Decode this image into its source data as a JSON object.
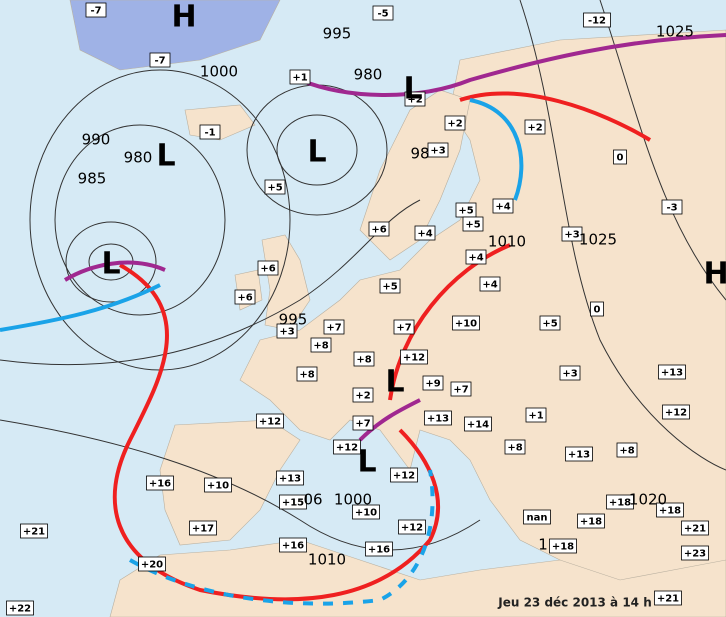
{
  "temperature_labels": [
    "-7",
    "-5",
    "-12",
    "-7",
    "+1",
    "+2",
    "-1",
    "+2",
    "+2",
    "+3",
    "0",
    "+5",
    "+5",
    "+4",
    "-3",
    "+6",
    "+4",
    "+5",
    "+3",
    "+6",
    "+5",
    "+4",
    "+4",
    "+6",
    "0",
    "+10",
    "+5",
    "+7",
    "+3",
    "+7",
    "+8",
    "+12",
    "+8",
    "+3",
    "+13",
    "+8",
    "+9",
    "+7",
    "+2",
    "+1",
    "+12",
    "+13",
    "+14",
    "+7",
    "+12",
    "+12",
    "+8",
    "+13",
    "+8",
    "+12",
    "+13",
    "+16",
    "+10",
    "+15",
    "+10",
    "+18",
    "+18",
    "+17",
    "+12",
    "nan",
    "+18",
    "+21",
    "+21",
    "+16",
    "+16",
    "+18",
    "+23",
    "+20",
    "+22",
    "+21"
  ],
  "isobar_labels": [
    "995",
    "1025",
    "980",
    "1000",
    "990",
    "980",
    "985",
    "98",
    "1010",
    "1025",
    "995",
    "1000",
    "06",
    "1010",
    "1020",
    "1"
  ],
  "pressure_centers": [
    "H",
    "L",
    "L",
    "L",
    "L",
    "L",
    "L",
    "H"
  ],
  "caption": "Jeu 23 déc 2013 à 14 h"
}
